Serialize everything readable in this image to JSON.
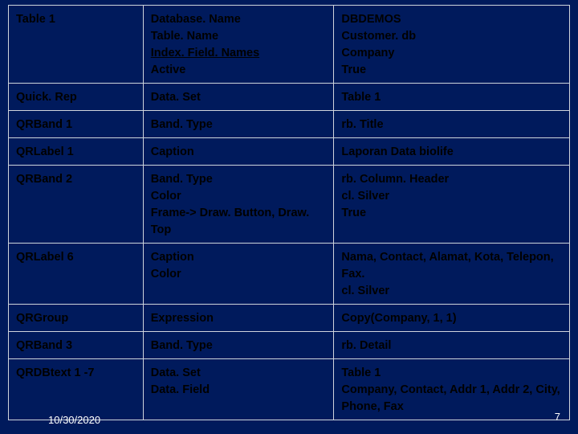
{
  "colors": {
    "background": "#001a5c",
    "border": "#cfd4dc",
    "text_cell": "#000000",
    "text_footer": "#ffffff"
  },
  "typography": {
    "cell_fontsize_pt": 11,
    "footer_fontsize_pt": 10,
    "font_family": "Arial",
    "font_weight": "bold"
  },
  "layout": {
    "column_widths_pct": [
      24,
      34,
      42
    ]
  },
  "rows": {
    "r0": {
      "c0": "Table 1",
      "c1a": "Database. Name",
      "c1b": "Table. Name",
      "c1c": "Index. Field. Names",
      "c1d": "Active",
      "c2a": "DBDEMOS",
      "c2b": "Customer. db",
      "c2c": "Company",
      "c2d": "True"
    },
    "r1": {
      "c0": "Quick. Rep",
      "c1": "Data. Set",
      "c2": "Table 1"
    },
    "r2": {
      "c0": "QRBand 1",
      "c1": "Band. Type",
      "c2": "rb. Title"
    },
    "r3": {
      "c0": "QRLabel 1",
      "c1": "Caption",
      "c2": "Laporan Data biolife"
    },
    "r4": {
      "c0": "QRBand 2",
      "c1a": "Band. Type",
      "c1b": "Color",
      "c1c": "Frame-> Draw. Button, Draw. Top",
      "c2a": "rb. Column. Header",
      "c2b": "cl. Silver",
      "c2c": " ",
      "c2d": "True"
    },
    "r5": {
      "c0": "QRLabel 6",
      "c1a": "Caption",
      "c1b": " ",
      "c1c": "Color",
      "c2a": "Nama, Contact, Alamat, Kota, Telepon, Fax.",
      "c2b": "cl. Silver"
    },
    "r6": {
      "c0": "QRGroup",
      "c1": "Expression",
      "c2": "Copy(Company, 1, 1)"
    },
    "r7": {
      "c0": "QRBand 3",
      "c1": "Band. Type",
      "c2": "rb. Detail"
    },
    "r8": {
      "c0": "QRDBtext 1 -7",
      "c1a": "Data. Set",
      "c1b": "Data. Field",
      "c2a": "Table 1",
      "c2b": "Company, Contact, Addr 1, Addr 2, City, Phone, Fax"
    }
  },
  "footer": {
    "date": "10/30/2020",
    "page": "7"
  }
}
